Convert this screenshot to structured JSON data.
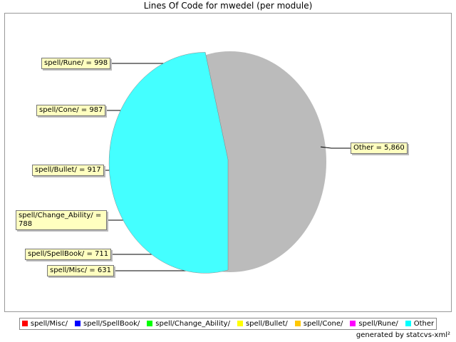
{
  "chart_data": {
    "type": "pie",
    "title": "Lines Of Code for mwedel (per module)",
    "categories": [
      "spell/Misc/",
      "spell/SpellBook/",
      "spell/Change_Ability/",
      "spell/Bullet/",
      "spell/Cone/",
      "spell/Rune/",
      "Other"
    ],
    "values": [
      631,
      711,
      788,
      917,
      987,
      998,
      5860
    ],
    "value_labels": [
      "spell/Misc/ = 631",
      "spell/SpellBook/ = 711",
      "spell/Change_Ability/ = 788",
      "spell/Bullet/ = 917",
      "spell/Cone/ = 987",
      "spell/Rune/ = 998",
      "Other = 5,860"
    ],
    "colors": [
      "#ff4444",
      "#4444ff",
      "#44ff44",
      "#ffff44",
      "#ffcc44",
      "#ff44ff",
      "#44ffff"
    ],
    "legend_colors": [
      "#ff0000",
      "#0000ff",
      "#00ff00",
      "#ffff00",
      "#ffc800",
      "#ff00ff",
      "#00ffff"
    ],
    "footer": "generated by statcvs-xml²"
  }
}
